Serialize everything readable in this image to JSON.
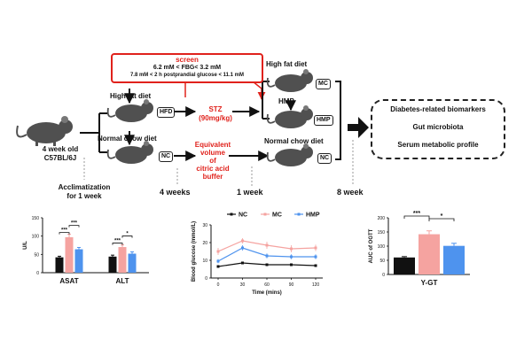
{
  "schematic": {
    "screen": {
      "title": "screen",
      "line1": "6.2 mM < FBG< 3.2 mM",
      "line2": "7.8 mM < 2 h postprandial glucose < 11.1 mM"
    },
    "start_label": "4 week old\nC57BL/6J",
    "acclimatization": "Acclimatization\nfor 1 week",
    "upper_diet": "High fat diet",
    "lower_diet": "Normal chow diet",
    "tag_hfd": "HFD",
    "tag_nc": "NC",
    "stz": "STZ\n(90mg/kg)",
    "vehicle": "Equivalent volume\nof\ncitric acid buffer",
    "timeline": [
      "4 weeks",
      "1 week",
      "8 week"
    ],
    "right_top_diet": "High fat diet",
    "right_mid_label": "HMP",
    "right_bottom_diet": "Normal chow diet",
    "groups": [
      "MC",
      "HMP",
      "NC"
    ],
    "outcomes": [
      "Diabetes-related biomarkers",
      "Gut microbiota",
      "Serum metabolic profile"
    ]
  },
  "colors": {
    "nc": "#111111",
    "mc": "#f5a3a0",
    "hmp": "#4e93ee",
    "screen": "#e0221c",
    "mouse": "#505050"
  },
  "chart_data": [
    {
      "type": "bar",
      "ylabel": "U/L",
      "categories": [
        "ASAT",
        "ALT"
      ],
      "ylim": [
        0,
        150
      ],
      "yticks": [
        0,
        50,
        100,
        150
      ],
      "series": [
        {
          "name": "NC",
          "values": [
            42,
            44
          ]
        },
        {
          "name": "MC",
          "values": [
            97,
            70
          ]
        },
        {
          "name": "HMP",
          "values": [
            64,
            52
          ]
        }
      ],
      "errors": [
        [
          3,
          4
        ],
        [
          8,
          6
        ],
        [
          5,
          5
        ]
      ],
      "significance": [
        {
          "category": "ASAT",
          "pairs": [
            [
              "NC",
              "MC",
              "***"
            ],
            [
              "MC",
              "HMP",
              "***"
            ]
          ]
        },
        {
          "category": "ALT",
          "pairs": [
            [
              "NC",
              "MC",
              "***"
            ],
            [
              "MC",
              "HMP",
              "*"
            ]
          ]
        }
      ]
    },
    {
      "type": "line",
      "xlabel": "Time (mins)",
      "ylabel": "Blood glucose (mmol/L)",
      "x": [
        0,
        30,
        60,
        90,
        120
      ],
      "ylim": [
        0,
        30
      ],
      "yticks": [
        0,
        10,
        20,
        30
      ],
      "legend_position": "top",
      "series": [
        {
          "name": "NC",
          "values": [
            6.5,
            8.5,
            7.5,
            7.5,
            7
          ]
        },
        {
          "name": "MC",
          "values": [
            15,
            21,
            18.5,
            16.5,
            17
          ]
        },
        {
          "name": "HMP",
          "values": [
            9.5,
            17,
            12.5,
            12,
            12
          ]
        }
      ],
      "errors": [
        [
          0.5,
          0.6,
          0.5,
          0.5,
          0.4
        ],
        [
          2,
          1.5,
          2,
          2,
          1.8
        ],
        [
          1.2,
          1.5,
          1.4,
          1.4,
          1.4
        ]
      ]
    },
    {
      "type": "bar",
      "ylabel": "AUC of OGTT",
      "categories": [
        "Y-GT"
      ],
      "ylim": [
        0,
        200
      ],
      "yticks": [
        0,
        50,
        100,
        150,
        200
      ],
      "series": [
        {
          "name": "NC",
          "values": [
            60
          ]
        },
        {
          "name": "MC",
          "values": [
            142
          ]
        },
        {
          "name": "HMP",
          "values": [
            101
          ]
        }
      ],
      "errors": [
        [
          3
        ],
        [
          12
        ],
        [
          9
        ]
      ],
      "significance": [
        {
          "category": "Y-GT",
          "pairs": [
            [
              "NC",
              "MC",
              "***"
            ],
            [
              "MC",
              "HMP",
              "*"
            ]
          ]
        }
      ]
    }
  ]
}
